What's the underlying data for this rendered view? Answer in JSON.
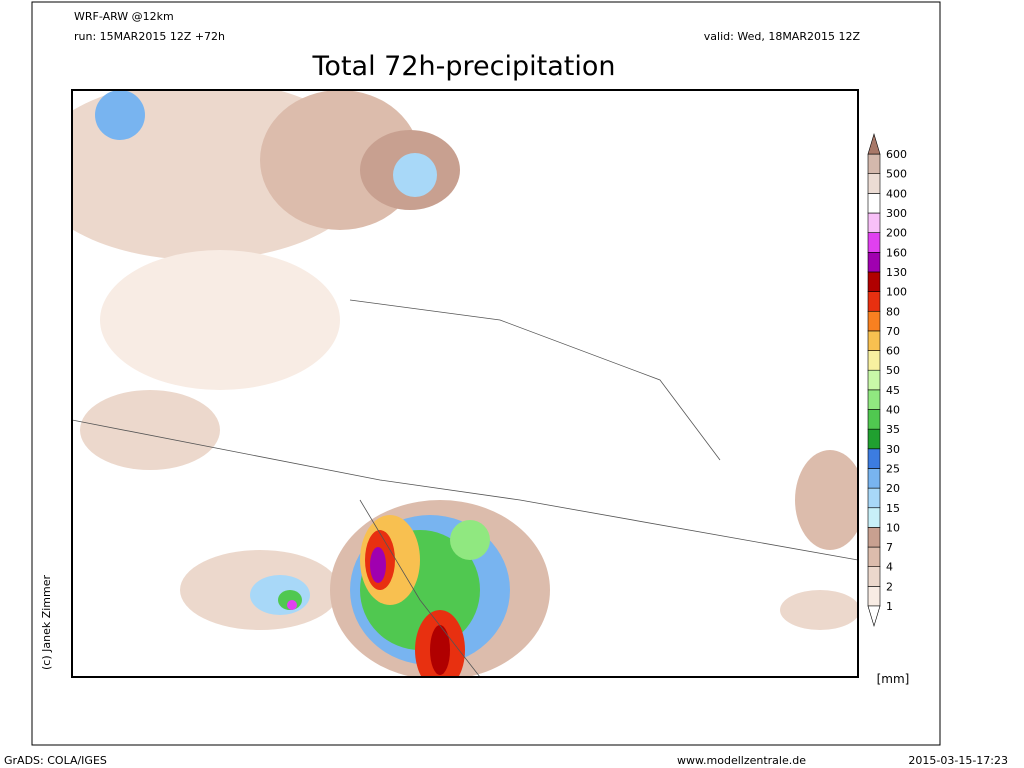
{
  "header": {
    "model": "WRF-ARW @12km",
    "run": "run: 15MAR2015 12Z +72h",
    "valid": "valid: Wed, 18MAR2015 12Z",
    "title": "Total 72h-precipitation"
  },
  "legend": {
    "levels": [
      1,
      2,
      4,
      7,
      10,
      15,
      20,
      25,
      30,
      35,
      40,
      45,
      50,
      60,
      70,
      80,
      100,
      130,
      160,
      200,
      300,
      400,
      500,
      600
    ],
    "colors": [
      "#f8ece4",
      "#ecd8cc",
      "#dcbcac",
      "#c8a090",
      "#c8f0f8",
      "#a8d8f8",
      "#78b4f0",
      "#3c7ce0",
      "#20a030",
      "#50c850",
      "#90e880",
      "#c8f8a8",
      "#f8f0a0",
      "#f8c050",
      "#f88020",
      "#e83010",
      "#b00000",
      "#a000b0",
      "#e040f0",
      "#f8c0f8",
      "#ffffff",
      "#ecdcd4",
      "#d4b8ac"
    ],
    "over": "#a87868",
    "under": "#ffffff",
    "unit": "[mm]"
  },
  "credit": "(c) Janek Zimmer",
  "footer": {
    "left": "GrADS: COLA/IGES",
    "center": "www.modellzentrale.de",
    "right": "2015-03-15-17:23"
  }
}
